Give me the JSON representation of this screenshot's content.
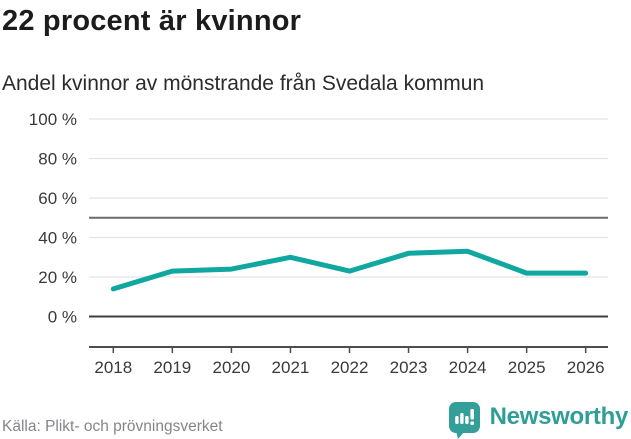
{
  "header": {
    "title": "22 procent är kvinnor",
    "subtitle": "Andel kvinnor av mönstrande från Svedala kommun"
  },
  "footer": {
    "source_label": "Källa: Plikt- och prövningsverket",
    "brand_name": "Newsworthy"
  },
  "colors": {
    "line": "#0FA79F",
    "brand_teal": "#349F99",
    "grid_light": "#E3E3E3",
    "grid_mid": "#6B6B6B",
    "grid_zero": "#3D3D3D",
    "axis": "#4D4D4D",
    "tick_text": "#3A3A3A",
    "title_text": "#1C1C1C",
    "muted_text": "#85858B"
  },
  "chart_data": {
    "type": "line",
    "title": "22 procent är kvinnor",
    "subtitle": "Andel kvinnor av mönstrande från Svedala kommun",
    "x": [
      2018,
      2019,
      2020,
      2021,
      2022,
      2023,
      2024,
      2025,
      2026
    ],
    "series": [
      {
        "name": "Andel kvinnor av mönstrande",
        "color": "#0FA79F",
        "values": [
          14,
          23,
          24,
          30,
          23,
          32,
          33,
          22,
          22
        ]
      }
    ],
    "unit": "%",
    "ylim": [
      0,
      100
    ],
    "y_ticks": [
      0,
      20,
      40,
      60,
      80,
      100
    ],
    "y_tick_format": "{v} %",
    "reference_lines": [
      50
    ],
    "grid": true,
    "legend": "none",
    "source": "Källa: Plikt- och prövningsverket"
  }
}
